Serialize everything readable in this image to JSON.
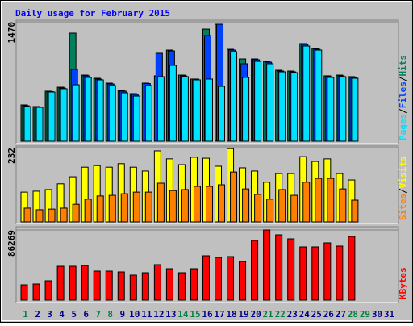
{
  "chart_data": {
    "type": "bar",
    "title": "Daily usage for February 2015",
    "categories": [
      "1",
      "2",
      "3",
      "4",
      "5",
      "6",
      "7",
      "8",
      "9",
      "10",
      "11",
      "12",
      "13",
      "14",
      "15",
      "16",
      "17",
      "18",
      "19",
      "20",
      "21",
      "22",
      "23",
      "24",
      "25",
      "26",
      "27",
      "28",
      "29",
      "30",
      "31"
    ],
    "category_colors": [
      "#008040",
      "#00008b",
      "#00008b",
      "#00008b",
      "#00008b",
      "#00008b",
      "#008040",
      "#008040",
      "#00008b",
      "#00008b",
      "#00008b",
      "#00008b",
      "#00008b",
      "#008040",
      "#008040",
      "#00008b",
      "#00008b",
      "#00008b",
      "#00008b",
      "#00008b",
      "#008040",
      "#008040",
      "#00008b",
      "#00008b",
      "#00008b",
      "#00008b",
      "#00008b",
      "#008040",
      "#008040",
      "#00008b",
      "#00008b"
    ],
    "legend_separator": "/",
    "panels": [
      {
        "ylim": [
          0,
          1470
        ],
        "yticks": [
          1470
        ],
        "series": [
          {
            "name": "Hits",
            "color": "#00805c",
            "values": [
              447,
              427,
              616,
              665,
              1331,
              814,
              775,
              715,
              626,
              586,
              715,
              805,
              1122,
              814,
              765,
              1380,
              1440,
              1132,
              1013,
              1013,
              983,
              874,
              864,
              1202,
              1142,
              805,
              814,
              795,
              null,
              null,
              null
            ]
          },
          {
            "name": "Files",
            "color": "#0040ff",
            "values": [
              437,
              422,
              611,
              655,
              884,
              804,
              765,
              705,
              616,
              576,
              710,
              1083,
              1112,
              804,
              765,
              1301,
              1440,
              1122,
              954,
              1003,
              973,
              864,
              854,
              1192,
              1132,
              795,
              804,
              785,
              null,
              null,
              null
            ]
          },
          {
            "name": "Pages",
            "color": "#00e0ff",
            "values": [
              427,
              417,
              606,
              646,
              695,
              785,
              755,
              685,
              596,
              556,
              685,
              795,
              934,
              795,
              755,
              765,
              675,
              1102,
              785,
              983,
              954,
              854,
              844,
              1172,
              1122,
              785,
              795,
              775,
              null,
              null,
              null
            ]
          }
        ]
      },
      {
        "ylim": [
          0,
          232
        ],
        "yticks": [
          232
        ],
        "series": [
          {
            "name": "Visits",
            "color": "#ffff00",
            "values": [
              93,
              96,
              101,
              119,
              141,
              171,
              176,
              171,
              182,
              171,
              159,
              222,
              197,
              179,
              202,
              199,
              174,
              229,
              169,
              159,
              124,
              151,
              151,
              204,
              189,
              197,
              151,
              131,
              null,
              null,
              null
            ]
          },
          {
            "name": "Sites",
            "color": "#ff8000",
            "values": [
              43,
              38,
              40,
              43,
              55,
              71,
              81,
              83,
              88,
              93,
              93,
              121,
              98,
              101,
              111,
              111,
              116,
              156,
              103,
              86,
              71,
              101,
              83,
              124,
              136,
              136,
              103,
              68,
              null,
              null,
              null
            ]
          }
        ]
      },
      {
        "ylim": [
          0,
          86269
        ],
        "yticks": [
          86269
        ],
        "series": [
          {
            "name": "KBytes",
            "color": "#ff0000",
            "values": [
              18840,
              19832,
              23798,
              41647,
              41647,
              42639,
              35697,
              35697,
              34706,
              30739,
              33714,
              43630,
              38672,
              33714,
              38672,
              54538,
              52555,
              53546,
              47596,
              73378,
              86269,
              80319,
              75361,
              65445,
              65445,
              70403,
              66437,
              78336,
              null,
              null,
              null
            ]
          }
        ]
      }
    ]
  }
}
